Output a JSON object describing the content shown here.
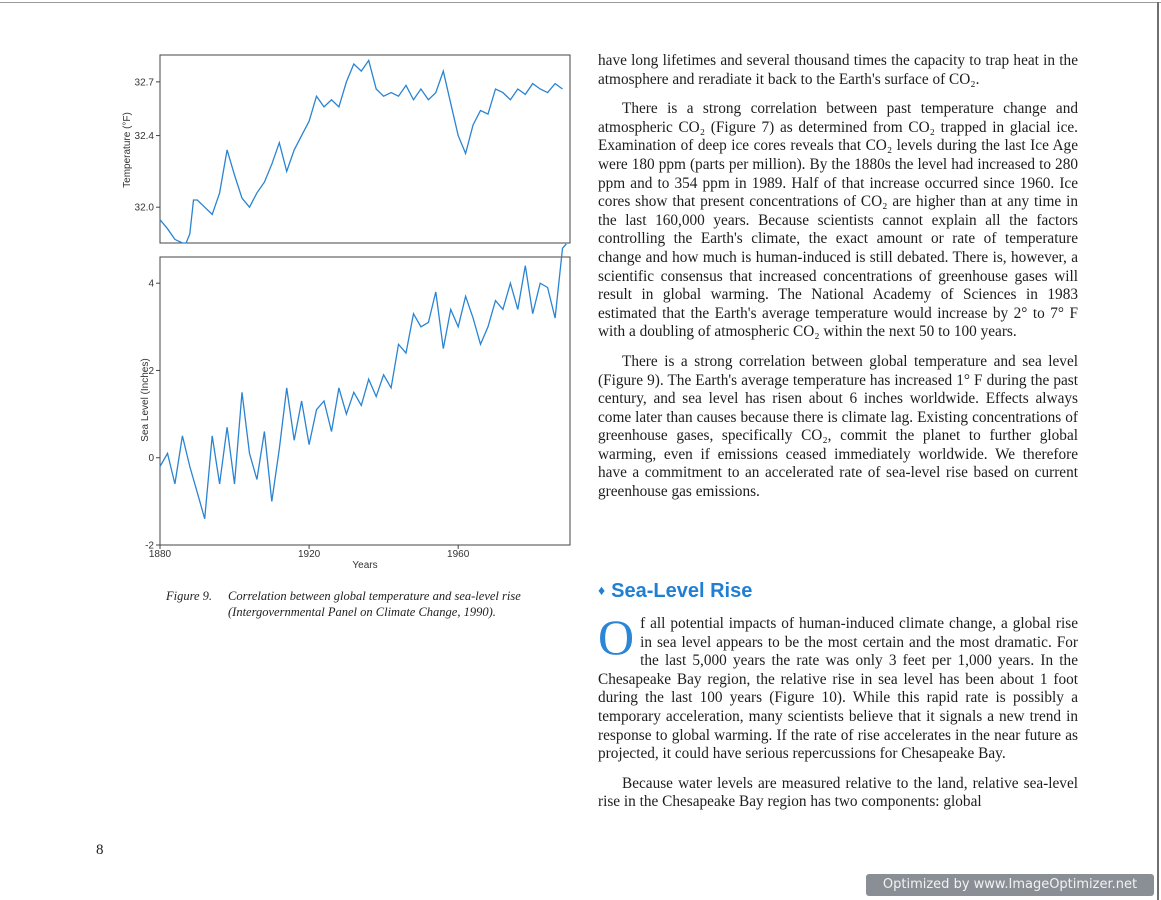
{
  "figure": {
    "caption_label": "Figure 9.",
    "caption_line1": "Correlation between global temperature and sea-level rise",
    "caption_line2": "(Intergovernmental Panel on Climate Change, 1990)."
  },
  "chart_data": [
    {
      "type": "line",
      "ylabel": "Temperature (°F)",
      "ylim": [
        31.8,
        32.85
      ],
      "xlim": [
        1880,
        1990
      ],
      "yticks": [
        "32.7",
        "32.4",
        "32.0"
      ],
      "x": [
        1880,
        1882,
        1884,
        1886,
        1887,
        1888,
        1889,
        1890,
        1892,
        1894,
        1896,
        1898,
        1900,
        1902,
        1904,
        1906,
        1908,
        1910,
        1912,
        1914,
        1916,
        1918,
        1920,
        1922,
        1924,
        1926,
        1928,
        1930,
        1932,
        1934,
        1936,
        1938,
        1940,
        1942,
        1944,
        1946,
        1948,
        1950,
        1952,
        1954,
        1956,
        1958,
        1960,
        1962,
        1964,
        1966,
        1968,
        1970,
        1972,
        1974,
        1976,
        1978,
        1980,
        1982,
        1984,
        1986,
        1988
      ],
      "values": [
        31.93,
        31.88,
        31.82,
        31.8,
        31.8,
        31.85,
        32.04,
        32.04,
        32.0,
        31.96,
        32.08,
        32.32,
        32.18,
        32.05,
        32.0,
        32.08,
        32.14,
        32.24,
        32.36,
        32.2,
        32.32,
        32.4,
        32.48,
        32.62,
        32.56,
        32.6,
        32.56,
        32.7,
        32.8,
        32.76,
        32.82,
        32.66,
        32.62,
        32.64,
        32.62,
        32.68,
        32.6,
        32.66,
        32.6,
        32.64,
        32.76,
        32.58,
        32.4,
        32.3,
        32.46,
        32.54,
        32.52,
        32.66,
        32.64,
        32.6,
        32.66,
        32.63,
        32.69,
        32.66,
        32.64,
        32.69,
        32.66
      ]
    },
    {
      "type": "line",
      "xlabel": "Years",
      "ylabel": "Sea Level (Inches)",
      "ylim": [
        -2,
        4.6
      ],
      "xlim": [
        1880,
        1990
      ],
      "yticks": [
        "4",
        "2",
        "0",
        "-2"
      ],
      "xticks": [
        "1880",
        "1920",
        "1960"
      ],
      "x": [
        1880,
        1882,
        1884,
        1886,
        1888,
        1890,
        1892,
        1894,
        1896,
        1898,
        1900,
        1902,
        1904,
        1906,
        1908,
        1910,
        1912,
        1914,
        1916,
        1918,
        1920,
        1922,
        1924,
        1926,
        1928,
        1930,
        1932,
        1934,
        1936,
        1938,
        1940,
        1942,
        1944,
        1946,
        1948,
        1950,
        1952,
        1954,
        1956,
        1958,
        1960,
        1962,
        1964,
        1966,
        1968,
        1970,
        1972,
        1974,
        1976,
        1978,
        1980,
        1982,
        1984,
        1986,
        1988,
        1989
      ],
      "values": [
        -0.2,
        0.1,
        -0.6,
        0.5,
        -0.2,
        -0.8,
        -1.4,
        0.5,
        -0.6,
        0.7,
        -0.6,
        1.5,
        0.1,
        -0.5,
        0.6,
        -1.0,
        0.2,
        1.6,
        0.4,
        1.3,
        0.3,
        1.1,
        1.3,
        0.6,
        1.6,
        1.0,
        1.5,
        1.2,
        1.8,
        1.4,
        1.9,
        1.6,
        2.6,
        2.4,
        3.3,
        3.0,
        3.1,
        3.8,
        2.5,
        3.4,
        3.0,
        3.7,
        3.2,
        2.6,
        3.0,
        3.6,
        3.4,
        4.0,
        3.4,
        4.4,
        3.3,
        4.0,
        3.9,
        3.2,
        4.8,
        4.9
      ]
    }
  ],
  "body_text": {
    "p1": "have long lifetimes and several thousand times the capacity to trap heat in the atmosphere and reradiate it back to the Earth's surface of CO₂.",
    "p2": "There is a strong correlation between past temperature change and atmospheric CO₂ (Figure 7) as determined from CO₂ trapped in glacial ice. Examination of deep ice cores reveals that CO₂ levels during the last Ice Age were 180 ppm (parts per million). By the 1880s the level had increased to 280 ppm and to 354 ppm in 1989. Half of that increase occurred since 1960. Ice cores show that present concentrations of CO₂ are higher than at any time in the last 160,000 years. Because scientists cannot explain all the factors controlling the Earth's climate, the exact amount or rate of temperature change and how much is human-induced is still debated. There is, however, a scientific consensus that increased concentrations of greenhouse gases will result in global warming. The National Academy of Sciences in 1983 estimated that the Earth's average temperature would increase by 2° to 7° F with a doubling of atmospheric CO₂ within the next 50 to 100 years.",
    "p3": "There is a strong correlation between global temperature and sea level (Figure 9). The Earth's average temperature has increased 1° F during the past century, and sea level has risen about 6 inches worldwide. Effects always come later than causes because there is climate lag. Existing concentrations of greenhouse gases, specifically CO₂, commit the planet to further global warming, even if emissions ceased immediately worldwide. We therefore have a commitment to an accelerated rate of sea-level rise based on current greenhouse gas emissions."
  },
  "section": {
    "bullet": "♦",
    "heading": "Sea-Level Rise",
    "dropcap": "O",
    "p1_rest": "f all potential impacts of human-induced climate change, a global rise in sea level appears to be the most certain and the most dramatic. For the last 5,000 years the rate was only 3 feet per 1,000 years. In the Chesapeake Bay region, the relative rise in sea level has been about 1 foot during the last 100 years (Figure 10). While this rapid rate is possibly a temporary acceleration, many scientists believe that it signals a new trend in response to global warming. If the rate of rise accelerates in the near future as projected, it could have serious repercussions for Chesapeake Bay.",
    "p2": "Because water levels are measured relative to the land, relative sea-level rise in the Chesapeake Bay region has two components: global"
  },
  "page_number": "8",
  "watermark": "Optimized by www.ImageOptimizer.net",
  "colors": {
    "line": "#2a84d2",
    "heading": "#1f7fd3"
  }
}
